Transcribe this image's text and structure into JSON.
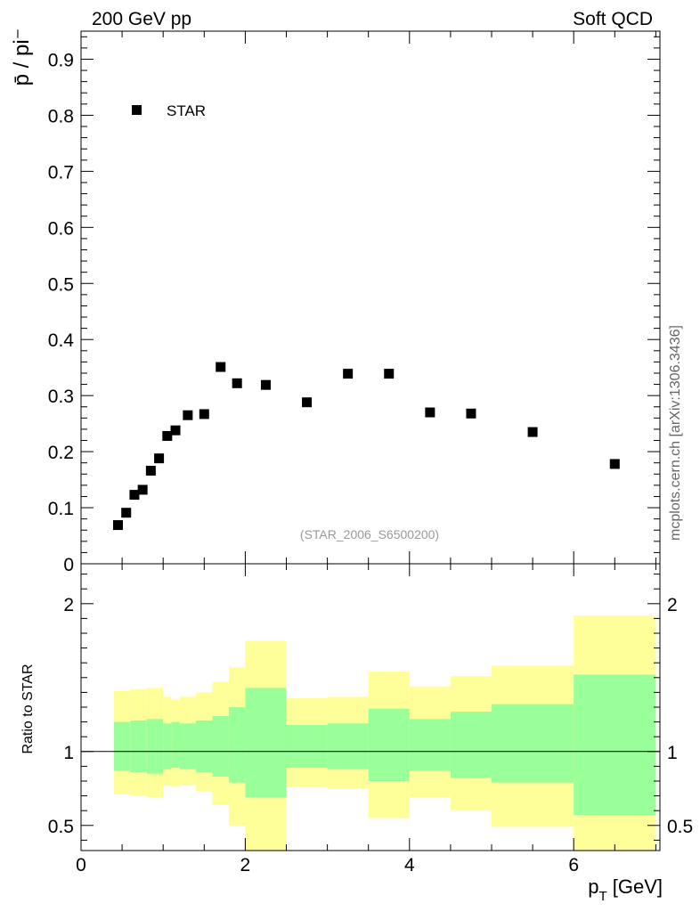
{
  "header": {
    "left": "200 GeV pp",
    "right": "Soft QCD"
  },
  "side_label": "mcplots.cern.ch [arXiv:1306.3436]",
  "chart_data": [
    {
      "type": "scatter",
      "ylabel": "p̄ / pi⁻",
      "ylim": [
        0,
        0.95
      ],
      "xlim": [
        0,
        7.05
      ],
      "yticks": [
        0,
        0.1,
        0.2,
        0.3,
        0.4,
        0.5,
        0.6,
        0.7,
        0.8,
        0.9
      ],
      "ytick_labels": [
        "0",
        "0.1",
        "0.2",
        "0.3",
        "0.4",
        "0.5",
        "0.6",
        "0.7",
        "0.8",
        "0.9"
      ],
      "legend": {
        "label": "STAR",
        "position": "top-left"
      },
      "watermark": "(STAR_2006_S6500200)",
      "series": [
        {
          "name": "STAR",
          "color": "#000000",
          "x": [
            0.45,
            0.55,
            0.65,
            0.75,
            0.85,
            0.95,
            1.05,
            1.15,
            1.3,
            1.5,
            1.7,
            1.9,
            2.25,
            2.75,
            3.25,
            3.75,
            4.25,
            4.75,
            5.5,
            6.5
          ],
          "y": [
            0.069,
            0.091,
            0.123,
            0.132,
            0.166,
            0.188,
            0.228,
            0.238,
            0.265,
            0.267,
            0.351,
            0.322,
            0.319,
            0.288,
            0.339,
            0.339,
            0.27,
            0.268,
            0.235,
            0.178
          ]
        }
      ]
    },
    {
      "type": "area",
      "ylabel": "Ratio to STAR",
      "xlabel": "p_T [GeV]",
      "xlim": [
        0,
        7.05
      ],
      "ylim": [
        0.33,
        2.27
      ],
      "xticks": [
        0,
        2,
        4,
        6
      ],
      "xtick_labels": [
        "0",
        "2",
        "4",
        "6"
      ],
      "yticks": [
        0.5,
        1,
        2
      ],
      "ytick_labels": [
        "0.5",
        "1",
        "2"
      ],
      "reference_line": 1,
      "bands": [
        {
          "x0": 0.4,
          "x1": 0.5,
          "stat_lo": 0.87,
          "stat_hi": 1.2,
          "tot_lo": 0.71,
          "tot_hi": 1.41
        },
        {
          "x0": 0.5,
          "x1": 0.6,
          "stat_lo": 0.87,
          "stat_hi": 1.2,
          "tot_lo": 0.71,
          "tot_hi": 1.41
        },
        {
          "x0": 0.6,
          "x1": 0.7,
          "stat_lo": 0.86,
          "stat_hi": 1.21,
          "tot_lo": 0.7,
          "tot_hi": 1.42
        },
        {
          "x0": 0.7,
          "x1": 0.8,
          "stat_lo": 0.86,
          "stat_hi": 1.21,
          "tot_lo": 0.7,
          "tot_hi": 1.42
        },
        {
          "x0": 0.8,
          "x1": 0.9,
          "stat_lo": 0.85,
          "stat_hi": 1.22,
          "tot_lo": 0.69,
          "tot_hi": 1.43
        },
        {
          "x0": 0.9,
          "x1": 1.0,
          "stat_lo": 0.85,
          "stat_hi": 1.22,
          "tot_lo": 0.69,
          "tot_hi": 1.43
        },
        {
          "x0": 1.0,
          "x1": 1.1,
          "stat_lo": 0.88,
          "stat_hi": 1.19,
          "tot_lo": 0.77,
          "tot_hi": 1.37
        },
        {
          "x0": 1.1,
          "x1": 1.2,
          "stat_lo": 0.89,
          "stat_hi": 1.2,
          "tot_lo": 0.76,
          "tot_hi": 1.35
        },
        {
          "x0": 1.2,
          "x1": 1.4,
          "stat_lo": 0.88,
          "stat_hi": 1.19,
          "tot_lo": 0.77,
          "tot_hi": 1.37
        },
        {
          "x0": 1.4,
          "x1": 1.6,
          "stat_lo": 0.86,
          "stat_hi": 1.21,
          "tot_lo": 0.73,
          "tot_hi": 1.4
        },
        {
          "x0": 1.6,
          "x1": 1.8,
          "stat_lo": 0.83,
          "stat_hi": 1.24,
          "tot_lo": 0.64,
          "tot_hi": 1.47
        },
        {
          "x0": 1.8,
          "x1": 2.0,
          "stat_lo": 0.79,
          "stat_hi": 1.3,
          "tot_lo": 0.5,
          "tot_hi": 1.57
        },
        {
          "x0": 2.0,
          "x1": 2.5,
          "stat_lo": 0.69,
          "stat_hi": 1.43,
          "tot_lo": 0.33,
          "tot_hi": 1.75
        },
        {
          "x0": 2.5,
          "x1": 3.0,
          "stat_lo": 0.89,
          "stat_hi": 1.18,
          "tot_lo": 0.76,
          "tot_hi": 1.36
        },
        {
          "x0": 3.0,
          "x1": 3.5,
          "stat_lo": 0.88,
          "stat_hi": 1.19,
          "tot_lo": 0.75,
          "tot_hi": 1.37
        },
        {
          "x0": 3.5,
          "x1": 4.0,
          "stat_lo": 0.8,
          "stat_hi": 1.29,
          "tot_lo": 0.55,
          "tot_hi": 1.54
        },
        {
          "x0": 4.0,
          "x1": 4.5,
          "stat_lo": 0.87,
          "stat_hi": 1.22,
          "tot_lo": 0.69,
          "tot_hi": 1.44
        },
        {
          "x0": 4.5,
          "x1": 5.0,
          "stat_lo": 0.82,
          "stat_hi": 1.27,
          "tot_lo": 0.6,
          "tot_hi": 1.51
        },
        {
          "x0": 5.0,
          "x1": 6.0,
          "stat_lo": 0.79,
          "stat_hi": 1.32,
          "tot_lo": 0.49,
          "tot_hi": 1.58
        },
        {
          "x0": 6.0,
          "x1": 7.0,
          "stat_lo": 0.57,
          "stat_hi": 1.52,
          "tot_lo": 0.33,
          "tot_hi": 1.92
        }
      ],
      "colors": {
        "stat": "#99ff99",
        "total": "#ffff99"
      }
    }
  ]
}
